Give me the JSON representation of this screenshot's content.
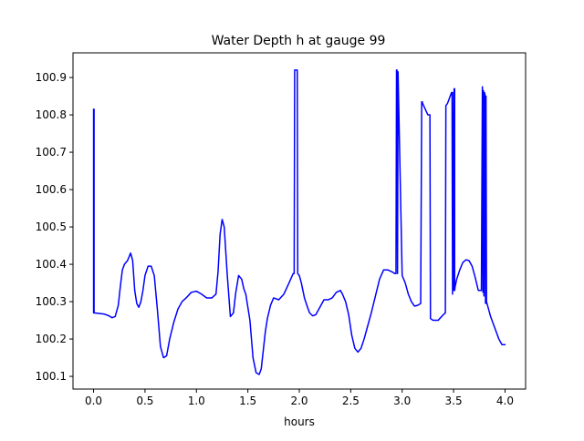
{
  "chart_data": {
    "type": "line",
    "title": "Water Depth h at gauge 99",
    "xlabel": "hours",
    "ylabel": "",
    "xlim": [
      -0.2,
      4.2
    ],
    "ylim": [
      100.066,
      100.966
    ],
    "x_ticks": [
      0.0,
      0.5,
      1.0,
      1.5,
      2.0,
      2.5,
      3.0,
      3.5,
      4.0
    ],
    "x_tick_labels": [
      "0.0",
      "0.5",
      "1.0",
      "1.5",
      "2.0",
      "2.5",
      "3.0",
      "3.5",
      "4.0"
    ],
    "y_ticks": [
      100.1,
      100.2,
      100.3,
      100.4,
      100.5,
      100.6,
      100.7,
      100.8,
      100.9
    ],
    "y_tick_labels": [
      "100.1",
      "100.2",
      "100.3",
      "100.4",
      "100.5",
      "100.6",
      "100.7",
      "100.8",
      "100.9"
    ],
    "grid": false,
    "legend": "none",
    "line_color": "#0000ff",
    "series": [
      {
        "x": [
          0.0,
          0.0,
          0.005,
          0.005,
          0.1,
          0.15,
          0.18,
          0.21,
          0.24,
          0.26,
          0.28,
          0.3,
          0.33,
          0.36,
          0.38,
          0.4,
          0.42,
          0.44,
          0.46,
          0.48,
          0.5,
          0.53,
          0.56,
          0.59,
          0.62,
          0.65,
          0.68,
          0.71,
          0.74,
          0.78,
          0.82,
          0.86,
          0.9,
          0.95,
          1.0,
          1.05,
          1.1,
          1.15,
          1.19,
          1.21,
          1.23,
          1.25,
          1.27,
          1.3,
          1.33,
          1.36,
          1.38,
          1.41,
          1.44,
          1.46,
          1.48,
          1.52,
          1.55,
          1.58,
          1.61,
          1.63,
          1.65,
          1.67,
          1.69,
          1.72,
          1.75,
          1.8,
          1.85,
          1.9,
          1.94,
          1.95,
          1.955,
          1.98,
          1.985,
          2.0,
          2.02,
          2.05,
          2.08,
          2.1,
          2.13,
          2.16,
          2.2,
          2.24,
          2.28,
          2.32,
          2.36,
          2.4,
          2.42,
          2.45,
          2.48,
          2.51,
          2.54,
          2.57,
          2.6,
          2.63,
          2.66,
          2.7,
          2.74,
          2.78,
          2.82,
          2.86,
          2.9,
          2.93,
          2.94,
          2.945,
          2.95,
          2.955,
          2.96,
          3.0,
          3.03,
          3.06,
          3.09,
          3.12,
          3.15,
          3.18,
          3.19,
          3.195,
          3.2,
          3.25,
          3.27,
          3.275,
          3.3,
          3.35,
          3.4,
          3.42,
          3.425,
          3.44,
          3.46,
          3.48,
          3.485,
          3.49,
          3.49,
          3.5,
          3.505,
          3.51,
          3.51,
          3.515,
          3.53,
          3.56,
          3.59,
          3.62,
          3.65,
          3.68,
          3.71,
          3.74,
          3.77,
          3.78,
          3.785,
          3.79,
          3.795,
          3.8,
          3.805,
          3.81,
          3.815,
          3.82,
          3.83,
          3.86,
          3.9,
          3.94,
          3.97,
          4.0
        ],
        "y": [
          100.27,
          100.815,
          100.815,
          100.27,
          100.267,
          100.262,
          100.257,
          100.26,
          100.29,
          100.34,
          100.385,
          100.4,
          100.41,
          100.43,
          100.41,
          100.33,
          100.295,
          100.285,
          100.3,
          100.33,
          100.37,
          100.395,
          100.395,
          100.37,
          100.28,
          100.18,
          100.15,
          100.155,
          100.2,
          100.245,
          100.28,
          100.3,
          100.31,
          100.325,
          100.328,
          100.32,
          100.31,
          100.31,
          100.32,
          100.38,
          100.48,
          100.52,
          100.5,
          100.37,
          100.26,
          100.27,
          100.32,
          100.37,
          100.36,
          100.335,
          100.32,
          100.25,
          100.15,
          100.11,
          100.105,
          100.12,
          100.17,
          100.22,
          100.255,
          100.29,
          100.31,
          100.305,
          100.32,
          100.35,
          100.375,
          100.375,
          100.92,
          100.92,
          100.375,
          100.37,
          100.35,
          100.31,
          100.285,
          100.27,
          100.262,
          100.265,
          100.285,
          100.305,
          100.305,
          100.31,
          100.325,
          100.33,
          100.32,
          100.3,
          100.265,
          100.21,
          100.175,
          100.165,
          100.175,
          100.2,
          100.23,
          100.27,
          100.315,
          100.36,
          100.385,
          100.385,
          100.38,
          100.375,
          100.375,
          100.92,
          100.92,
          100.375,
          100.915,
          100.37,
          100.35,
          100.32,
          100.3,
          100.288,
          100.29,
          100.295,
          100.835,
          100.835,
          100.83,
          100.8,
          100.8,
          100.255,
          100.25,
          100.25,
          100.265,
          100.27,
          100.825,
          100.83,
          100.845,
          100.86,
          100.86,
          100.32,
          100.86,
          100.33,
          100.87,
          100.87,
          100.33,
          100.34,
          100.36,
          100.385,
          100.405,
          100.412,
          100.41,
          100.395,
          100.365,
          100.33,
          100.33,
          100.875,
          100.325,
          100.865,
          100.315,
          100.86,
          100.855,
          100.295,
          100.85,
          100.3,
          100.29,
          100.26,
          100.23,
          100.2,
          100.185,
          100.185
        ]
      }
    ]
  }
}
